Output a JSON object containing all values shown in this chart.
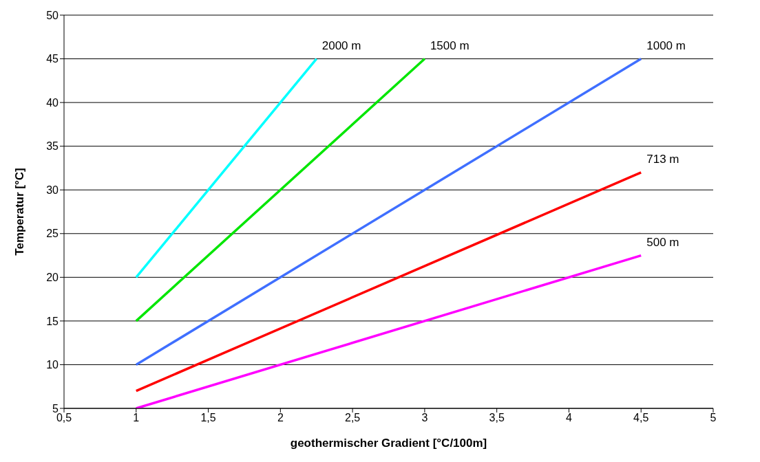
{
  "chart_data": {
    "type": "line",
    "xlabel": "geothermischer Gradient [°C/100m]",
    "ylabel": "Temperatur [°C]",
    "xlim": [
      0.5,
      5
    ],
    "xticks": [
      {
        "value": 0.5,
        "label": "0,5"
      },
      1,
      {
        "value": 1.5,
        "label": "1,5"
      },
      2,
      {
        "value": 2.5,
        "label": "2,5"
      },
      3,
      {
        "value": 3.5,
        "label": "3,5"
      },
      4,
      {
        "value": 4.5,
        "label": "4,5"
      },
      5
    ],
    "ylim": [
      5,
      50
    ],
    "yticks": [
      5,
      10,
      15,
      20,
      25,
      30,
      35,
      40,
      45,
      50
    ],
    "grid": "y",
    "marker": "none",
    "line_style": "solid",
    "series": [
      {
        "name": "2000 m",
        "color": "#00ffff",
        "x": [
          1,
          2.25
        ],
        "values": [
          20,
          45
        ]
      },
      {
        "name": "1500 m",
        "color": "#00e600",
        "x": [
          1,
          3
        ],
        "values": [
          15,
          45
        ]
      },
      {
        "name": "1000 m",
        "color": "#3f6fff",
        "x": [
          1,
          4.5
        ],
        "values": [
          10,
          45
        ]
      },
      {
        "name": "713 m",
        "color": "#ff0000",
        "x": [
          1,
          4.5
        ],
        "values": [
          7,
          32
        ]
      },
      {
        "name": "500 m",
        "color": "#ff00ff",
        "x": [
          1,
          4.5
        ],
        "values": [
          5,
          22.5
        ]
      }
    ]
  }
}
